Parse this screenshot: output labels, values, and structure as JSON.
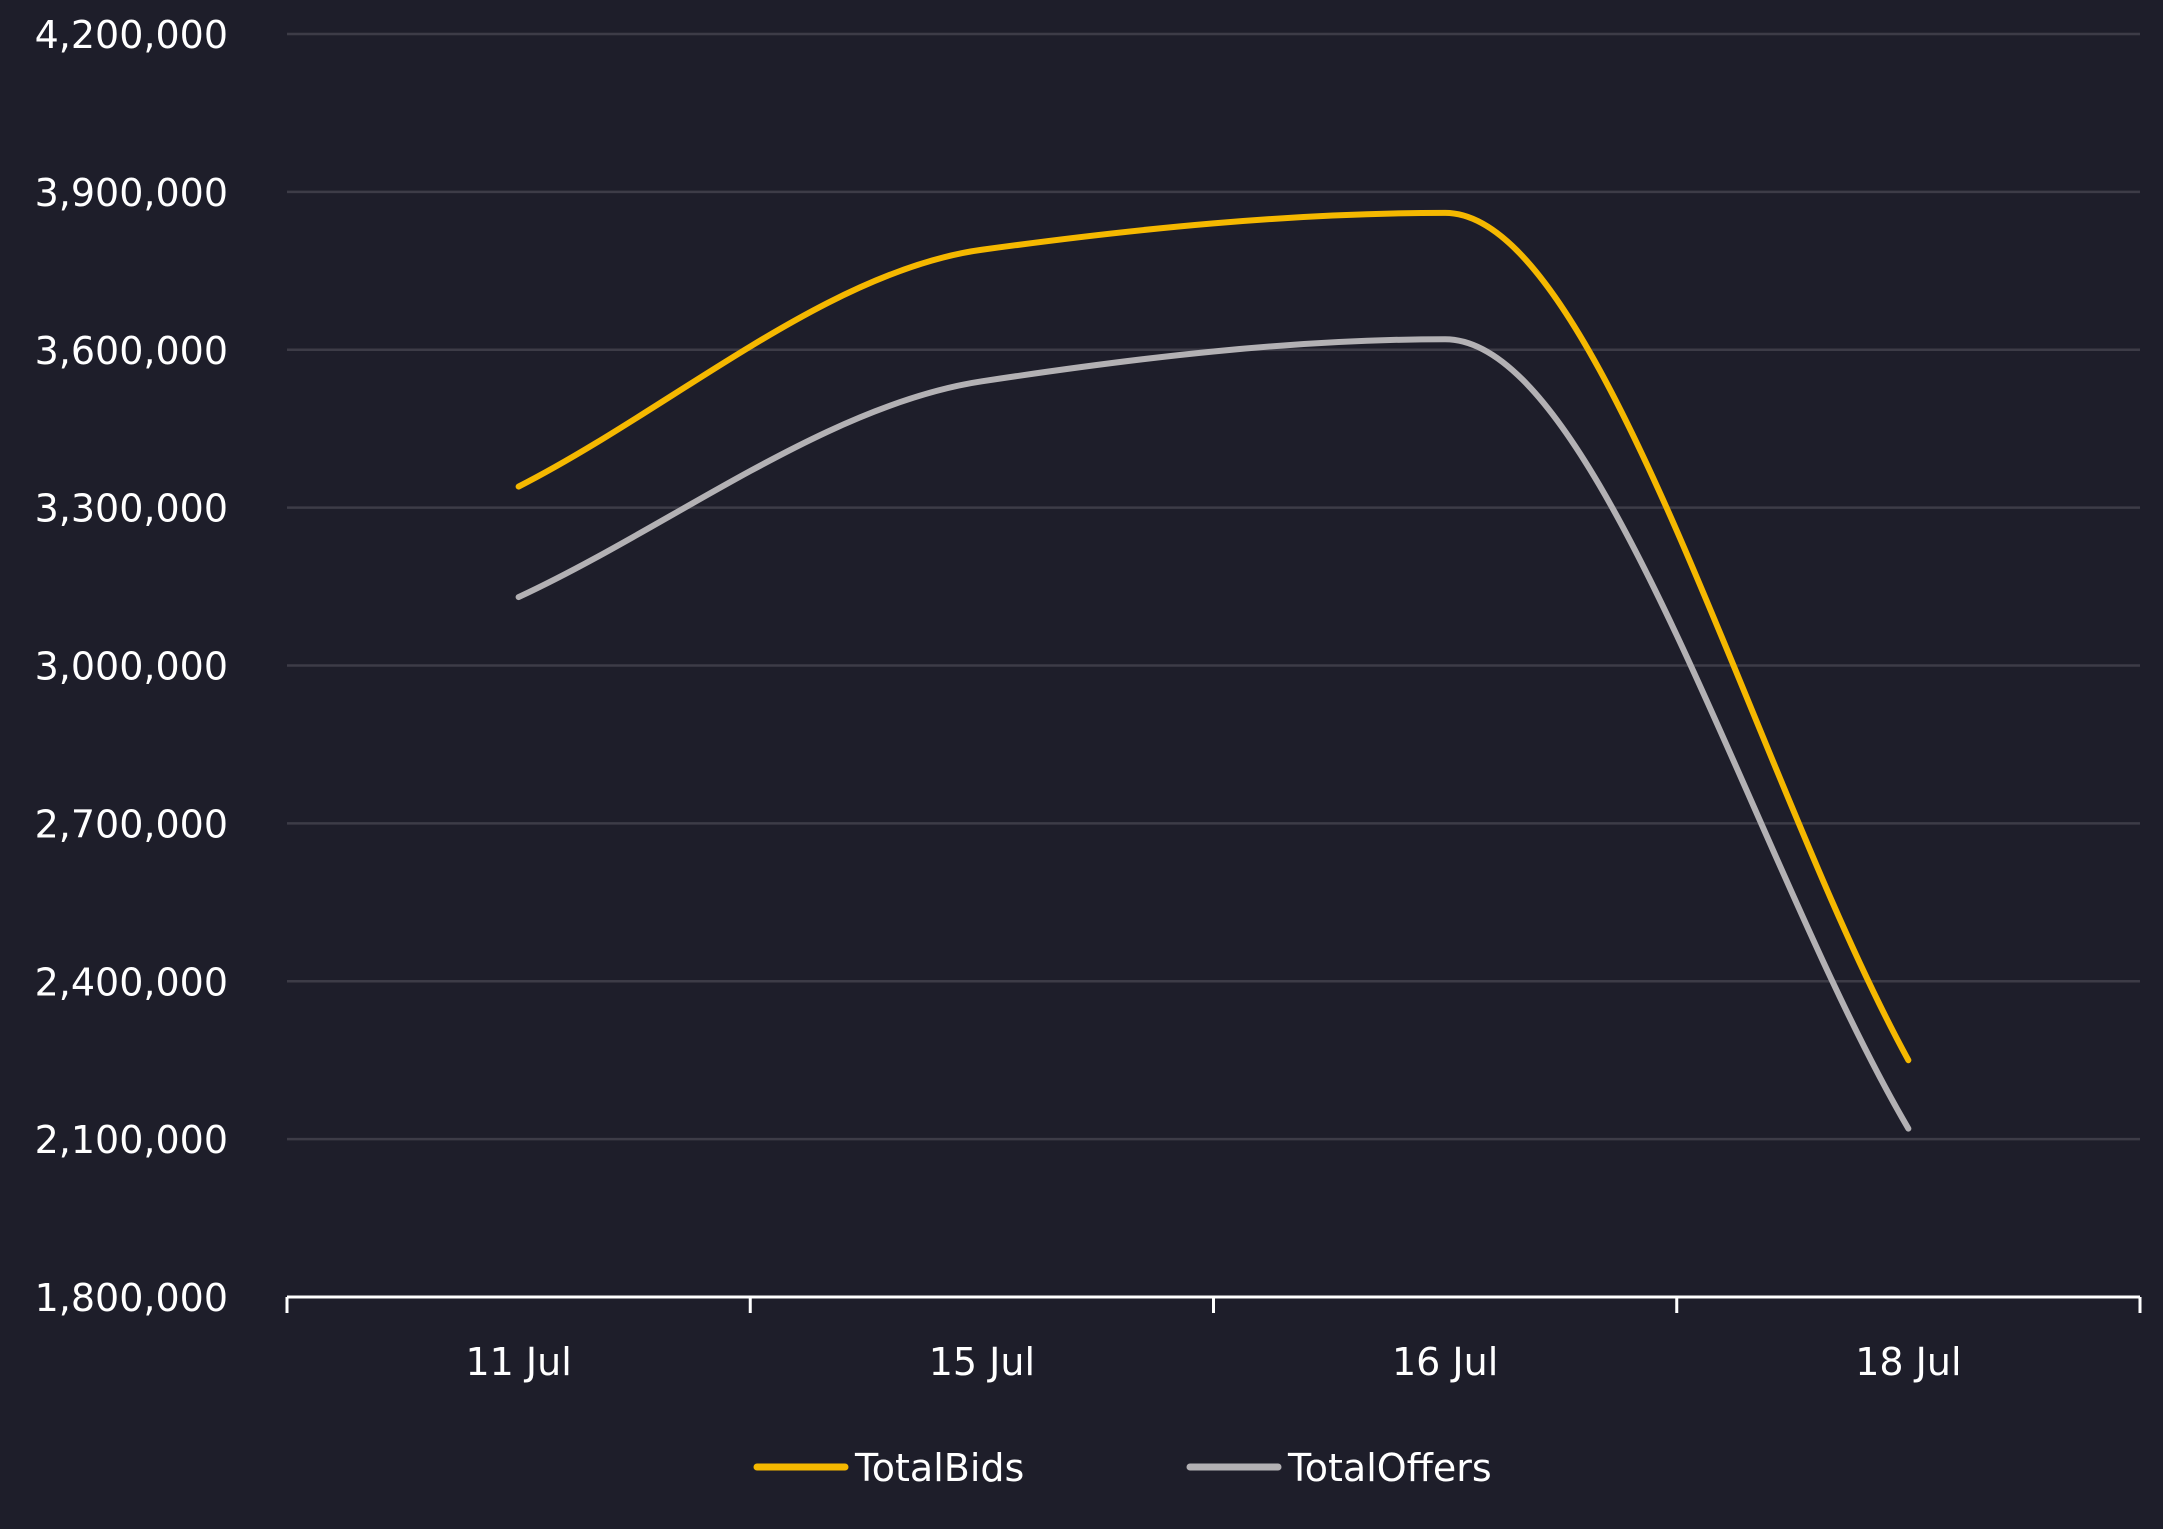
{
  "chart_data": {
    "type": "line",
    "categories": [
      "11 Jul",
      "15 Jul",
      "16 Jul",
      "18 Jul"
    ],
    "ylim": [
      1800000,
      4200000
    ],
    "yticks": [
      "1,800,000",
      "2,100,000",
      "2,400,000",
      "2,700,000",
      "3,000,000",
      "3,300,000",
      "3,600,000",
      "3,900,000",
      "4,200,000"
    ],
    "grid": true,
    "legend_position": "bottom-center",
    "series": [
      {
        "name": "TotalBids",
        "color": "#f5b800",
        "values": [
          3340000,
          3790000,
          3860000,
          2250000
        ]
      },
      {
        "name": "TotalOffers",
        "color": "#b3b1b4",
        "values": [
          3130000,
          3540000,
          3620000,
          2120000
        ]
      }
    ]
  }
}
